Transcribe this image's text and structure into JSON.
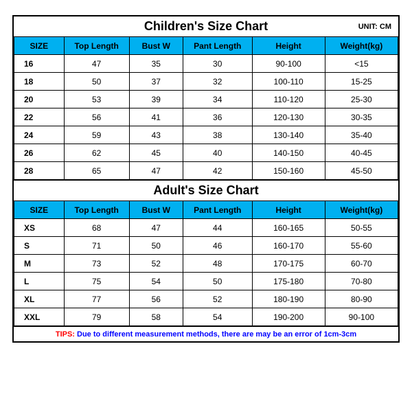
{
  "unit_label": "UNIT: CM",
  "header_bg": "#00b0f0",
  "children": {
    "title": "Children's Size Chart",
    "columns": [
      "SIZE",
      "Top Length",
      "Bust W",
      "Pant Length",
      "Height",
      "Weight(kg)"
    ],
    "rows": [
      [
        "16",
        "47",
        "35",
        "30",
        "90-100",
        "<15"
      ],
      [
        "18",
        "50",
        "37",
        "32",
        "100-110",
        "15-25"
      ],
      [
        "20",
        "53",
        "39",
        "34",
        "110-120",
        "25-30"
      ],
      [
        "22",
        "56",
        "41",
        "36",
        "120-130",
        "30-35"
      ],
      [
        "24",
        "59",
        "43",
        "38",
        "130-140",
        "35-40"
      ],
      [
        "26",
        "62",
        "45",
        "40",
        "140-150",
        "40-45"
      ],
      [
        "28",
        "65",
        "47",
        "42",
        "150-160",
        "45-50"
      ]
    ]
  },
  "adult": {
    "title": "Adult's Size Chart",
    "columns": [
      "SIZE",
      "Top Length",
      "Bust W",
      "Pant Length",
      "Height",
      "Weight(kg)"
    ],
    "rows": [
      [
        "XS",
        "68",
        "47",
        "44",
        "160-165",
        "50-55"
      ],
      [
        "S",
        "71",
        "50",
        "46",
        "160-170",
        "55-60"
      ],
      [
        "M",
        "73",
        "52",
        "48",
        "170-175",
        "60-70"
      ],
      [
        "L",
        "75",
        "54",
        "50",
        "175-180",
        "70-80"
      ],
      [
        "XL",
        "77",
        "56",
        "52",
        "180-190",
        "80-90"
      ],
      [
        "XXL",
        "79",
        "58",
        "54",
        "190-200",
        "90-100"
      ]
    ]
  },
  "tips": {
    "label": "TIPS: ",
    "text": "Due to different measurement methods, there are may be an error of 1cm-3cm",
    "label_color": "#ff0000",
    "text_color": "#0000ff"
  }
}
